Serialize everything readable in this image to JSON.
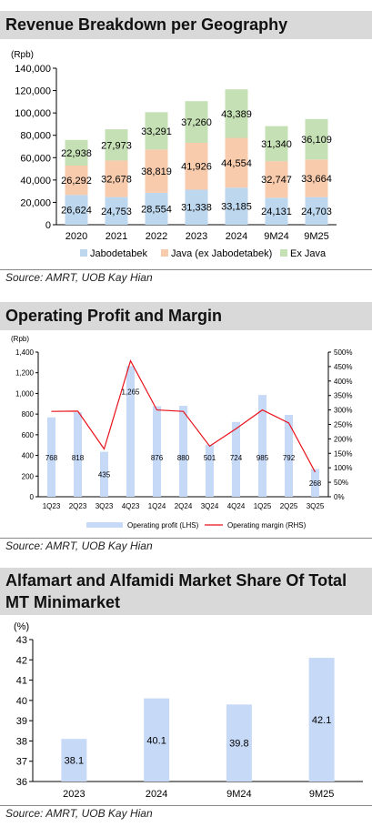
{
  "sections": [
    {
      "title": "Revenue Breakdown per Geography",
      "source": "Source: AMRT, UOB Kay Hian"
    },
    {
      "title": "Operating Profit and Margin",
      "source": "Source: AMRT, UOB Kay Hian"
    },
    {
      "title": "Alfamart and Alfamidi Market Share Of Total MT Minimarket",
      "source": "Source: AMRT, UOB Kay Hian"
    }
  ],
  "colors": {
    "blue": "#bdd7ee",
    "orange": "#f8cbad",
    "green": "#c5e0b4",
    "bar_blue": "#c6d9f7",
    "red_line": "#e8121b",
    "title_bg": "#d9d9d9"
  },
  "chart_data": [
    {
      "type": "bar",
      "stacked": true,
      "title": "Revenue Breakdown per Geography",
      "ylabel": "(Rpb)",
      "categories": [
        "2020",
        "2021",
        "2022",
        "2023",
        "2024",
        "9M24",
        "9M25"
      ],
      "ylim": [
        0,
        140000
      ],
      "yticks": [
        0,
        20000,
        40000,
        60000,
        80000,
        100000,
        120000,
        140000
      ],
      "ytick_labels": [
        "0",
        "20,000",
        "40,000",
        "60,000",
        "80,000",
        "100,000",
        "120,000",
        "140,000"
      ],
      "series": [
        {
          "name": "Jabodetabek",
          "color": "#bdd7ee",
          "values": [
            26624,
            24753,
            28554,
            31338,
            33185,
            24131,
            24703
          ],
          "labels": [
            "26,624",
            "24,753",
            "28,554",
            "31,338",
            "33,185",
            "24,131",
            "24,703"
          ]
        },
        {
          "name": "Java (ex Jabodetabek)",
          "color": "#f8cbad",
          "values": [
            26292,
            32678,
            38819,
            41926,
            44554,
            32747,
            33664
          ],
          "labels": [
            "26,292",
            "32,678",
            "38,819",
            "41,926",
            "44,554",
            "32,747",
            "33,664"
          ]
        },
        {
          "name": "Ex Java",
          "color": "#c5e0b4",
          "values": [
            22938,
            27973,
            33291,
            37260,
            43389,
            31340,
            36109
          ],
          "labels": [
            "22,938",
            "27,973",
            "33,291",
            "37,260",
            "43,389",
            "31,340",
            "36,109"
          ]
        }
      ],
      "legend_position": "bottom",
      "grid": false
    },
    {
      "type": "bar",
      "title": "Operating Profit and Margin",
      "ylabel": "(Rpb)",
      "categories": [
        "1Q23",
        "2Q23",
        "3Q23",
        "4Q23",
        "1Q24",
        "2Q24",
        "3Q24",
        "4Q24",
        "1Q25",
        "2Q25",
        "3Q25"
      ],
      "ylim": [
        0,
        1400
      ],
      "yticks": [
        0,
        200,
        400,
        600,
        800,
        1000,
        1200,
        1400
      ],
      "ytick_labels": [
        "0",
        "200",
        "400",
        "600",
        "800",
        "1,000",
        "1,200",
        "1,400"
      ],
      "y2lim": [
        0,
        500
      ],
      "y2ticks": [
        0,
        50,
        100,
        150,
        200,
        250,
        300,
        350,
        400,
        450,
        500
      ],
      "y2tick_labels": [
        "0%",
        "50%",
        "100%",
        "150%",
        "200%",
        "250%",
        "300%",
        "350%",
        "400%",
        "450%",
        "500%"
      ],
      "series": [
        {
          "name": "Operating profit (LHS)",
          "kind": "bar",
          "axis": "left",
          "color": "#c6d9f7",
          "values": [
            768,
            818,
            435,
            1265,
            876,
            880,
            501,
            724,
            985,
            792,
            268
          ],
          "labels": [
            "768",
            "818",
            "435",
            "1,265",
            "876",
            "880",
            "501",
            "724",
            "985",
            "792",
            "268"
          ]
        },
        {
          "name": "Operating margin (RHS)",
          "kind": "line",
          "axis": "right",
          "color": "#e8121b",
          "values": [
            295,
            296,
            165,
            470,
            300,
            295,
            175,
            235,
            300,
            255,
            85
          ]
        }
      ],
      "legend_position": "bottom",
      "grid": false
    },
    {
      "type": "bar",
      "title": "Alfamart and Alfamidi Market Share Of Total MT Minimarket",
      "ylabel": "(%)",
      "categories": [
        "2023",
        "2024",
        "9M24",
        "9M25"
      ],
      "values": [
        38.1,
        40.1,
        39.8,
        42.1
      ],
      "labels": [
        "38.1",
        "40.1",
        "39.8",
        "42.1"
      ],
      "ylim": [
        36,
        43
      ],
      "yticks": [
        36,
        37,
        38,
        39,
        40,
        41,
        42,
        43
      ],
      "ytick_labels": [
        "36",
        "37",
        "38",
        "39",
        "40",
        "41",
        "42",
        "43"
      ],
      "color": "#c6d9f7",
      "grid": false
    }
  ]
}
